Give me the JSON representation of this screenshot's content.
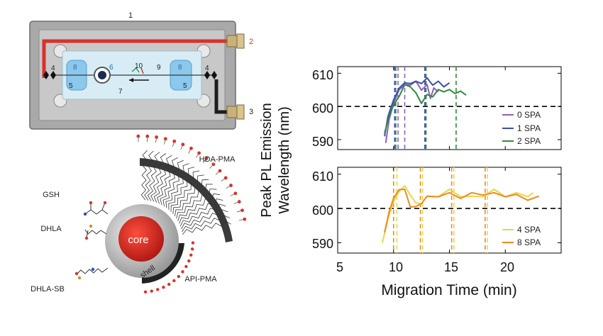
{
  "apparatus": {
    "labels": [
      "1",
      "2",
      "3",
      "4",
      "4",
      "5",
      "5",
      "6",
      "7",
      "8",
      "8",
      "9",
      "10"
    ]
  },
  "nanoparticle": {
    "core_label": "core",
    "shell_label": "shell",
    "ligands": [
      "GSH",
      "DHLA",
      "DHLA-SB",
      "HDA-PMA",
      "API-PMA"
    ]
  },
  "colors": {
    "s0": "#8b5fbf",
    "s1": "#3b4fb0",
    "s2": "#2e8b3a",
    "s4": "#e6d84a",
    "s8": "#f08a1c",
    "tube": "#d9322a",
    "core": "#cc1f1a"
  },
  "chart_data": {
    "type": "line",
    "ylabel": "Peak PL Emission Wavelength (nm)",
    "ylabel_lines": [
      "Peak PL Emission",
      "Wavelength (nm)"
    ],
    "xlabel": "Migration Time (min)",
    "xlim": [
      5,
      25
    ],
    "xticks": [
      "5",
      "10",
      "15",
      "20"
    ],
    "reference_line_nm": 600,
    "panels": [
      {
        "ylim": [
          587,
          612
        ],
        "yticks": [
          "590",
          "600",
          "610"
        ],
        "legend_position": "bottom-right",
        "series": [
          {
            "name": "0 SPA",
            "color": "#8b5fbf",
            "x": [
              9.3,
              9.6,
              10,
              10.5,
              11,
              11.5,
              12,
              12.5,
              13,
              13.3,
              13.6,
              14
            ],
            "y": [
              589,
              596,
              601,
              605,
              606,
              607,
              607,
              605.5,
              606,
              603,
              605,
              605
            ],
            "markers": [
              10.4,
              11.0,
              12.9
            ]
          },
          {
            "name": "1 SPA",
            "color": "#3b4fb0",
            "x": [
              9.2,
              9.5,
              10,
              10.5,
              11,
              11.5,
              12,
              12.5,
              13,
              13.5,
              14,
              14.5,
              15
            ],
            "y": [
              591,
              597,
              602,
              605.5,
              606.5,
              607.5,
              607,
              607.5,
              608,
              607,
              607,
              606.5,
              606.5
            ],
            "markers": [
              10.1,
              12.8
            ]
          },
          {
            "name": "2 SPA",
            "color": "#2e8b3a",
            "x": [
              9.2,
              9.6,
              10,
              10.5,
              11,
              11.5,
              12,
              12.5,
              13,
              13.5,
              14,
              14.5,
              15,
              15.5,
              16,
              16.5
            ],
            "y": [
              592,
              597,
              600.5,
              603,
              606,
              606.5,
              603.5,
              601.5,
              603,
              603.5,
              604.5,
              605,
              604.5,
              604.5,
              604,
              604
            ],
            "markers": [
              10.2,
              12.9,
              15.6
            ]
          }
        ]
      },
      {
        "ylim": [
          587,
          612
        ],
        "yticks": [
          "590",
          "600",
          "610"
        ],
        "legend_position": "bottom-right",
        "series": [
          {
            "name": "4 SPA",
            "color": "#e6d84a",
            "x": [
              9.0,
              9.5,
              10,
              10.5,
              11,
              11.5,
              12,
              12.5,
              13,
              14,
              15,
              16,
              17,
              18,
              19,
              20,
              21,
              22,
              22.5
            ],
            "y": [
              590,
              597,
              602,
              605,
              606,
              604.5,
              601,
              602,
              603,
              604,
              605,
              604,
              603,
              604,
              605,
              604,
              604,
              604,
              604
            ],
            "markers": [
              10.3,
              12.6,
              15.4,
              18.4
            ]
          },
          {
            "name": "8 SPA",
            "color": "#f08a1c",
            "x": [
              9.2,
              9.6,
              10,
              10.5,
              11,
              11.5,
              12,
              12.5,
              13,
              14,
              15,
              16,
              17,
              18,
              19,
              20,
              21,
              22,
              23
            ],
            "y": [
              593,
              599,
              603,
              605.5,
              605,
              601,
              600,
              602,
              603,
              604,
              604,
              603.5,
              604,
              604.5,
              604,
              604,
              603.5,
              603,
              603
            ],
            "markers": [
              10.0,
              12.4,
              15.2,
              18.2
            ]
          }
        ]
      }
    ]
  }
}
